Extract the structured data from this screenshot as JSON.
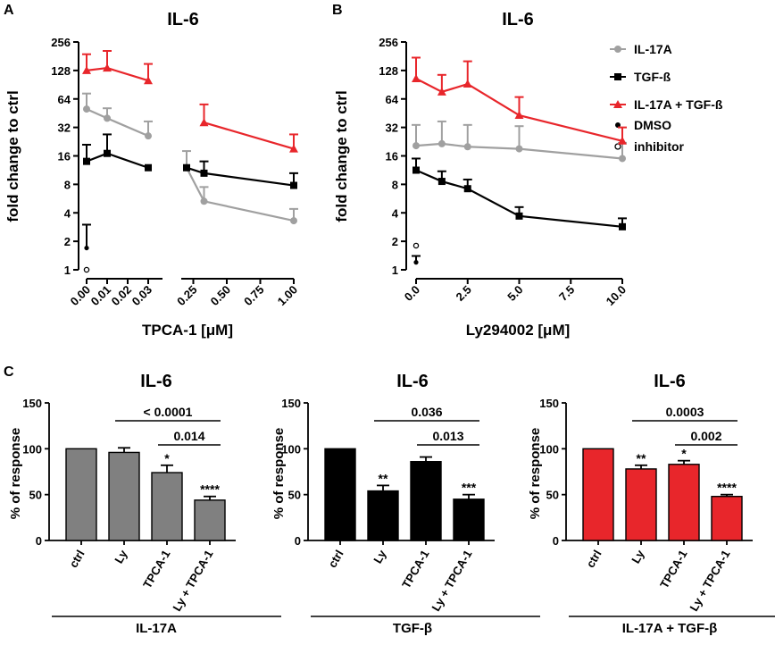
{
  "chart_data": [
    {
      "panel": "A",
      "type": "line",
      "title": "IL-6",
      "xlabel": "TPCA-1 [μM]",
      "ylabel": "fold change to ctrl",
      "yscale": "log2",
      "ylim": [
        1,
        256
      ],
      "yticks": [
        "1",
        "2",
        "4",
        "8",
        "16",
        "32",
        "64",
        "128",
        "256"
      ],
      "x_segments": [
        {
          "xlim": [
            0,
            0.035
          ],
          "ticks": [
            "0.00",
            "0.01",
            "0.02",
            "0.03"
          ]
        },
        {
          "xlim": [
            0.16,
            1.0
          ],
          "ticks": [
            "0.25",
            "0.50",
            "0.75",
            "1.00"
          ]
        }
      ],
      "x": [
        0.0,
        0.01,
        0.03,
        0.2,
        0.33,
        1.0
      ],
      "series": [
        {
          "name": "IL-17A",
          "color": "#a0a0a0",
          "marker": "circle",
          "values": [
            50,
            40,
            26,
            12,
            5.3,
            3.3
          ],
          "errors": [
            73,
            51,
            37,
            18,
            7.5,
            4.4
          ]
        },
        {
          "name": "TGF-ß",
          "color": "#000000",
          "marker": "square",
          "values": [
            14,
            17,
            12,
            12,
            10.5,
            7.8
          ],
          "errors": [
            21,
            27,
            12,
            12,
            14,
            10.5
          ]
        },
        {
          "name": "IL-17A + TGF-ß",
          "color": "#e8262b",
          "marker": "triangle",
          "values": [
            128,
            136,
            100,
            null,
            36,
            19
          ],
          "errors": [
            190,
            206,
            150,
            null,
            56,
            27
          ]
        }
      ],
      "extra_points": [
        {
          "name": "DMSO",
          "x": 0.0,
          "y": 1.7,
          "error": 3.0,
          "marker": "filled-dot"
        },
        {
          "name": "inhibitor",
          "x": 0.0,
          "y": 1.0,
          "marker": "open-circle"
        }
      ]
    },
    {
      "panel": "B",
      "type": "line",
      "title": "IL-6",
      "xlabel": "Ly294002 [μM]",
      "ylabel": "fold change to ctrl",
      "yscale": "log2",
      "ylim": [
        1,
        256
      ],
      "yticks": [
        "1",
        "2",
        "4",
        "8",
        "16",
        "32",
        "64",
        "128",
        "256"
      ],
      "xlim": [
        0,
        10
      ],
      "xticks": [
        "0.0",
        "2.5",
        "5.0",
        "7.5",
        "10.0"
      ],
      "x": [
        0.0,
        1.25,
        2.5,
        5.0,
        10.0
      ],
      "series": [
        {
          "name": "IL-17A",
          "color": "#a0a0a0",
          "marker": "circle",
          "values": [
            20.5,
            21.5,
            20,
            19,
            15
          ],
          "errors": [
            34,
            37,
            34,
            33,
            22
          ]
        },
        {
          "name": "TGF-ß",
          "color": "#000000",
          "marker": "square",
          "values": [
            11.3,
            8.6,
            7.2,
            3.7,
            2.85
          ],
          "errors": [
            15,
            11,
            9,
            4.6,
            3.5
          ]
        },
        {
          "name": "IL-17A + TGF-ß",
          "color": "#e8262b",
          "marker": "triangle",
          "values": [
            105,
            76,
            92,
            43,
            23
          ],
          "errors": [
            175,
            115,
            160,
            67,
            32
          ]
        }
      ],
      "extra_points": [
        {
          "name": "DMSO",
          "x": 0.0,
          "y": 1.2,
          "error": 1.4,
          "marker": "filled-dot"
        },
        {
          "name": "inhibitor",
          "x": 0.0,
          "y": 1.8,
          "marker": "open-circle"
        }
      ]
    },
    {
      "panel": "C",
      "type": "bar",
      "title": "IL-6",
      "group": "IL-17A",
      "ylabel": "% of response",
      "ylim": [
        0,
        150
      ],
      "yticks": [
        "0",
        "50",
        "100",
        "150"
      ],
      "categories": [
        "ctrl",
        "Ly",
        "TPCA-1",
        "Ly + TPCA-1"
      ],
      "values": [
        100,
        96,
        74,
        44
      ],
      "errors": [
        0,
        5,
        8,
        4
      ],
      "bar_color": "#808080",
      "significance": [
        "",
        "",
        "*",
        "****"
      ],
      "brackets": [
        {
          "from": "Ly",
          "to": "Ly + TPCA-1",
          "label": "< 0.0001"
        },
        {
          "from": "TPCA-1",
          "to": "Ly + TPCA-1",
          "label": "0.014"
        }
      ]
    },
    {
      "panel": "C",
      "type": "bar",
      "title": "IL-6",
      "group": "TGF-β",
      "ylabel": "% of response",
      "ylim": [
        0,
        150
      ],
      "yticks": [
        "0",
        "50",
        "100",
        "150"
      ],
      "categories": [
        "ctrl",
        "Ly",
        "TPCA-1",
        "Ly + TPCA-1"
      ],
      "values": [
        100,
        54,
        86,
        45
      ],
      "errors": [
        0,
        6,
        5,
        5
      ],
      "bar_color": "#000000",
      "significance": [
        "",
        "**",
        "",
        "***"
      ],
      "brackets": [
        {
          "from": "Ly",
          "to": "Ly + TPCA-1",
          "label": "0.036"
        },
        {
          "from": "TPCA-1",
          "to": "Ly + TPCA-1",
          "label": "0.013"
        }
      ]
    },
    {
      "panel": "C",
      "type": "bar",
      "title": "IL-6",
      "group": "IL-17A + TGF-β",
      "ylabel": "% of response",
      "ylim": [
        0,
        150
      ],
      "yticks": [
        "0",
        "50",
        "100",
        "150"
      ],
      "categories": [
        "ctrl",
        "Ly",
        "TPCA-1",
        "Ly + TPCA-1"
      ],
      "values": [
        100,
        78,
        83,
        48
      ],
      "errors": [
        0,
        4,
        4,
        2
      ],
      "bar_color": "#e8262b",
      "significance": [
        "",
        "**",
        "*",
        "****"
      ],
      "brackets": [
        {
          "from": "Ly",
          "to": "Ly + TPCA-1",
          "label": "0.0003"
        },
        {
          "from": "TPCA-1",
          "to": "Ly + TPCA-1",
          "label": "0.002"
        }
      ]
    }
  ],
  "panel_labels": [
    "A",
    "B",
    "C"
  ],
  "legend": [
    {
      "label": "IL-17A",
      "color": "#a0a0a0",
      "marker": "circle"
    },
    {
      "label": "TGF-ß",
      "color": "#000000",
      "marker": "square"
    },
    {
      "label": "IL-17A + TGF-ß",
      "color": "#e8262b",
      "marker": "triangle"
    },
    {
      "label": "DMSO",
      "color": "#000000",
      "marker": "filled-dot"
    },
    {
      "label": "inhibitor",
      "color": "#000000",
      "marker": "open-circle"
    }
  ]
}
